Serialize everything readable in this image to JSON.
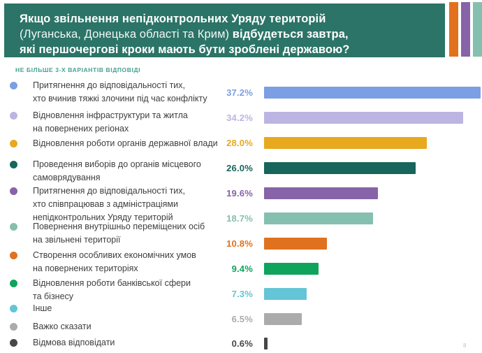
{
  "header": {
    "background": "#2B7467",
    "title_bold_1": "Якщо звільнення непідконтрольних Уряду територій",
    "title_regular_2": "(Луганська, Донецька області та Крим) ",
    "title_bold_2": "відбудеться завтра,",
    "title_bold_3": "які першочергові кроки мають бути зроблені державою?",
    "stripe_colors": [
      "#E2711D",
      "#8763A8",
      "#85BFAF"
    ]
  },
  "subtitle": "НЕ БІЛЬШЕ 3-Х ВАРІАНТІВ ВІДПОВІДІ",
  "page_number": "8",
  "chart_data": {
    "type": "bar",
    "orientation": "horizontal",
    "title": "Якщо звільнення непідконтрольних Уряду територій (Луганська, Донецька області та Крим) відбудеться завтра, які першочергові кроки мають бути зроблені державою?",
    "subtitle": "НЕ БІЛЬШЕ 3-Х ВАРІАНТІВ ВІДПОВІДІ",
    "xlim": [
      0,
      40
    ],
    "grid": false,
    "legend_position": "left",
    "items": [
      {
        "label": "Притягнення до відповідальності тих,\nхто вчинив тяжкі злочини під час конфлікту",
        "value": 37.2,
        "value_label": "37.2%",
        "color": "#7C9EE4"
      },
      {
        "label": "Відновлення інфраструктури та житла\nна повернених регіонах",
        "value": 34.2,
        "value_label": "34.2%",
        "color": "#BCB4E2"
      },
      {
        "label": "Відновлення роботи органів державної влади",
        "value": 28.0,
        "value_label": "28.0%",
        "color": "#E8A91F"
      },
      {
        "label": "Проведення виборів до органів місцевого\nсамоврядування",
        "value": 26.0,
        "value_label": "26.0%",
        "color": "#17655B"
      },
      {
        "label": "Притягнення до відповідальності тих,\nхто співпрацював з адміністраціями\nнепідконтрольних Уряду територій",
        "value": 19.6,
        "value_label": "19.6%",
        "color": "#8763A8"
      },
      {
        "label": "Повернення внутрішньо переміщених осіб\nна звільнені території",
        "value": 18.7,
        "value_label": "18.7%",
        "color": "#85BFAF"
      },
      {
        "label": "Створення особливих економічних умов\nна повернених територіях",
        "value": 10.8,
        "value_label": "10.8%",
        "color": "#E0711F"
      },
      {
        "label": "Відновлення роботи банківської сфери\nта бізнесу",
        "value": 9.4,
        "value_label": "9.4%",
        "color": "#10A35C"
      },
      {
        "label": "Інше",
        "value": 7.3,
        "value_label": "7.3%",
        "color": "#63C5D5"
      },
      {
        "label": "Важко сказати",
        "value": 6.5,
        "value_label": "6.5%",
        "color": "#ABABAB"
      },
      {
        "label": "Відмова відповідати",
        "value": 0.6,
        "value_label": "0.6%",
        "color": "#474747"
      }
    ]
  }
}
